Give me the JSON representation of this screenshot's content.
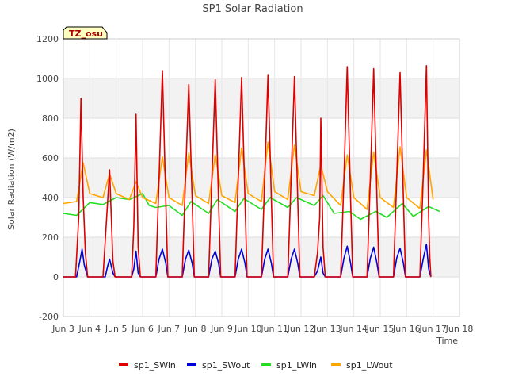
{
  "chart_data": {
    "type": "line",
    "title": "SP1 Solar Radiation",
    "xlabel": "Time",
    "ylabel": "Solar Radiation (W/m2)",
    "station_label": "TZ_osu",
    "x_domain": [
      "Jun 3",
      "Jun 18"
    ],
    "ylim": [
      -200,
      1200
    ],
    "x_ticks": [
      "Jun 3",
      "Jun 4",
      "Jun 5",
      "Jun 6",
      "Jun 7",
      "Jun 8",
      "Jun 9",
      "Jun 10",
      "Jun 11",
      "Jun 12",
      "Jun 13",
      "Jun 14",
      "Jun 15",
      "Jun 16",
      "Jun 17",
      "Jun 18"
    ],
    "y_ticks": [
      -200,
      0,
      200,
      400,
      600,
      800,
      1000,
      1200
    ],
    "grid": true,
    "legend_position": "bottom",
    "series": [
      {
        "name": "sp1_SWin",
        "color": "#dd0000",
        "values": [
          [
            "Jun 3 00:00",
            0
          ],
          [
            "Jun 3 11:00",
            0
          ],
          [
            "Jun 3 14:00",
            300
          ],
          [
            "Jun 3 16:00",
            900
          ],
          [
            "Jun 3 18:00",
            400
          ],
          [
            "Jun 3 20:00",
            120
          ],
          [
            "Jun 3 22:00",
            0
          ],
          [
            "Jun 4 12:00",
            0
          ],
          [
            "Jun 4 14:00",
            180
          ],
          [
            "Jun 4 18:00",
            540
          ],
          [
            "Jun 4 21:00",
            80
          ],
          [
            "Jun 4 23:00",
            0
          ],
          [
            "Jun 5 14:00",
            0
          ],
          [
            "Jun 5 16:00",
            250
          ],
          [
            "Jun 5 18:00",
            820
          ],
          [
            "Jun 5 20:00",
            150
          ],
          [
            "Jun 5 22:00",
            0
          ],
          [
            "Jun 6 12:00",
            0
          ],
          [
            "Jun 6 15:00",
            500
          ],
          [
            "Jun 6 18:00",
            1040
          ],
          [
            "Jun 6 21:00",
            400
          ],
          [
            "Jun 6 23:00",
            0
          ],
          [
            "Jun 7 12:00",
            0
          ],
          [
            "Jun 7 15:00",
            500
          ],
          [
            "Jun 7 18:00",
            970
          ],
          [
            "Jun 7 21:00",
            400
          ],
          [
            "Jun 7 23:00",
            0
          ],
          [
            "Jun 8 12:00",
            0
          ],
          [
            "Jun 8 15:00",
            500
          ],
          [
            "Jun 8 18:00",
            995
          ],
          [
            "Jun 8 21:00",
            400
          ],
          [
            "Jun 8 23:00",
            0
          ],
          [
            "Jun 9 12:00",
            0
          ],
          [
            "Jun 9 15:00",
            500
          ],
          [
            "Jun 9 18:00",
            1005
          ],
          [
            "Jun 9 21:00",
            400
          ],
          [
            "Jun 9 23:00",
            0
          ],
          [
            "Jun 10 12:00",
            0
          ],
          [
            "Jun 10 15:00",
            500
          ],
          [
            "Jun 10 18:00",
            1020
          ],
          [
            "Jun 10 21:00",
            400
          ],
          [
            "Jun 10 23:00",
            0
          ],
          [
            "Jun 11 12:00",
            0
          ],
          [
            "Jun 11 15:00",
            500
          ],
          [
            "Jun 11 18:00",
            1010
          ],
          [
            "Jun 11 21:00",
            400
          ],
          [
            "Jun 11 23:00",
            0
          ],
          [
            "Jun 12 12:00",
            0
          ],
          [
            "Jun 12 15:00",
            120
          ],
          [
            "Jun 12 17:00",
            300
          ],
          [
            "Jun 12 18:00",
            800
          ],
          [
            "Jun 12 20:00",
            150
          ],
          [
            "Jun 12 22:00",
            0
          ],
          [
            "Jun 13 12:00",
            0
          ],
          [
            "Jun 13 15:00",
            500
          ],
          [
            "Jun 13 18:00",
            1060
          ],
          [
            "Jun 13 21:00",
            400
          ],
          [
            "Jun 13 23:00",
            0
          ],
          [
            "Jun 14 12:00",
            0
          ],
          [
            "Jun 14 15:00",
            500
          ],
          [
            "Jun 14 18:00",
            1050
          ],
          [
            "Jun 14 21:00",
            400
          ],
          [
            "Jun 14 23:00",
            0
          ],
          [
            "Jun 15 12:00",
            0
          ],
          [
            "Jun 15 15:00",
            500
          ],
          [
            "Jun 15 18:00",
            1030
          ],
          [
            "Jun 15 21:00",
            400
          ],
          [
            "Jun 15 23:00",
            0
          ],
          [
            "Jun 16 12:00",
            0
          ],
          [
            "Jun 16 15:00",
            500
          ],
          [
            "Jun 16 18:00",
            1065
          ],
          [
            "Jun 16 20:00",
            300
          ],
          [
            "Jun 16 21:00",
            100
          ],
          [
            "Jun 16 22:00",
            0
          ]
        ]
      },
      {
        "name": "sp1_SWout",
        "color": "#0000dd",
        "values": [
          [
            "Jun 3 00:00",
            0
          ],
          [
            "Jun 3 12:00",
            0
          ],
          [
            "Jun 3 15:00",
            80
          ],
          [
            "Jun 3 17:00",
            140
          ],
          [
            "Jun 3 19:00",
            60
          ],
          [
            "Jun 3 22:00",
            0
          ],
          [
            "Jun 4 14:00",
            0
          ],
          [
            "Jun 4 16:00",
            50
          ],
          [
            "Jun 4 18:00",
            90
          ],
          [
            "Jun 4 21:00",
            20
          ],
          [
            "Jun 4 23:00",
            0
          ],
          [
            "Jun 5 14:00",
            0
          ],
          [
            "Jun 5 16:00",
            40
          ],
          [
            "Jun 5 18:00",
            130
          ],
          [
            "Jun 5 20:00",
            20
          ],
          [
            "Jun 5 22:00",
            0
          ],
          [
            "Jun 6 12:00",
            0
          ],
          [
            "Jun 6 15:00",
            90
          ],
          [
            "Jun 6 18:00",
            140
          ],
          [
            "Jun 6 21:00",
            70
          ],
          [
            "Jun 6 23:00",
            0
          ],
          [
            "Jun 7 12:00",
            0
          ],
          [
            "Jun 7 15:00",
            90
          ],
          [
            "Jun 7 18:00",
            135
          ],
          [
            "Jun 7 21:00",
            70
          ],
          [
            "Jun 7 23:00",
            0
          ],
          [
            "Jun 8 12:00",
            0
          ],
          [
            "Jun 8 15:00",
            90
          ],
          [
            "Jun 8 18:00",
            130
          ],
          [
            "Jun 8 21:00",
            70
          ],
          [
            "Jun 8 23:00",
            0
          ],
          [
            "Jun 9 12:00",
            0
          ],
          [
            "Jun 9 15:00",
            90
          ],
          [
            "Jun 9 18:00",
            140
          ],
          [
            "Jun 9 21:00",
            70
          ],
          [
            "Jun 9 23:00",
            0
          ],
          [
            "Jun 10 12:00",
            0
          ],
          [
            "Jun 10 15:00",
            90
          ],
          [
            "Jun 10 18:00",
            140
          ],
          [
            "Jun 10 21:00",
            70
          ],
          [
            "Jun 10 23:00",
            0
          ],
          [
            "Jun 11 12:00",
            0
          ],
          [
            "Jun 11 15:00",
            90
          ],
          [
            "Jun 11 18:00",
            140
          ],
          [
            "Jun 11 21:00",
            70
          ],
          [
            "Jun 11 23:00",
            0
          ],
          [
            "Jun 12 12:00",
            0
          ],
          [
            "Jun 12 15:00",
            30
          ],
          [
            "Jun 12 18:00",
            100
          ],
          [
            "Jun 12 20:00",
            20
          ],
          [
            "Jun 12 22:00",
            0
          ],
          [
            "Jun 13 12:00",
            0
          ],
          [
            "Jun 13 15:00",
            95
          ],
          [
            "Jun 13 18:00",
            155
          ],
          [
            "Jun 13 21:00",
            70
          ],
          [
            "Jun 13 23:00",
            0
          ],
          [
            "Jun 14 12:00",
            0
          ],
          [
            "Jun 14 15:00",
            95
          ],
          [
            "Jun 14 18:00",
            150
          ],
          [
            "Jun 14 21:00",
            70
          ],
          [
            "Jun 14 23:00",
            0
          ],
          [
            "Jun 15 12:00",
            0
          ],
          [
            "Jun 15 15:00",
            95
          ],
          [
            "Jun 15 18:00",
            145
          ],
          [
            "Jun 15 21:00",
            70
          ],
          [
            "Jun 15 23:00",
            0
          ],
          [
            "Jun 16 12:00",
            0
          ],
          [
            "Jun 16 15:00",
            90
          ],
          [
            "Jun 16 18:00",
            165
          ],
          [
            "Jun 16 20:00",
            40
          ],
          [
            "Jun 16 22:00",
            0
          ]
        ]
      },
      {
        "name": "sp1_LWin",
        "color": "#22dd22",
        "values": [
          [
            "Jun 3 00:00",
            320
          ],
          [
            "Jun 3 12:00",
            310
          ],
          [
            "Jun 4 00:00",
            375
          ],
          [
            "Jun 4 12:00",
            365
          ],
          [
            "Jun 5 00:00",
            400
          ],
          [
            "Jun 5 12:00",
            390
          ],
          [
            "Jun 6 00:00",
            420
          ],
          [
            "Jun 6 06:00",
            360
          ],
          [
            "Jun 6 12:00",
            350
          ],
          [
            "Jun 7 00:00",
            360
          ],
          [
            "Jun 7 12:00",
            310
          ],
          [
            "Jun 7 20:00",
            380
          ],
          [
            "Jun 8 12:00",
            320
          ],
          [
            "Jun 8 20:00",
            390
          ],
          [
            "Jun 9 12:00",
            330
          ],
          [
            "Jun 9 20:00",
            395
          ],
          [
            "Jun 10 12:00",
            340
          ],
          [
            "Jun 10 20:00",
            400
          ],
          [
            "Jun 11 12:00",
            350
          ],
          [
            "Jun 11 20:00",
            400
          ],
          [
            "Jun 12 12:00",
            360
          ],
          [
            "Jun 12 20:00",
            410
          ],
          [
            "Jun 13 06:00",
            320
          ],
          [
            "Jun 13 20:00",
            330
          ],
          [
            "Jun 14 06:00",
            290
          ],
          [
            "Jun 14 20:00",
            330
          ],
          [
            "Jun 15 06:00",
            300
          ],
          [
            "Jun 15 20:00",
            370
          ],
          [
            "Jun 16 06:00",
            305
          ],
          [
            "Jun 16 20:00",
            355
          ],
          [
            "Jun 17 06:00",
            330
          ]
        ]
      },
      {
        "name": "sp1_LWout",
        "color": "#ffa500",
        "values": [
          [
            "Jun 3 00:00",
            370
          ],
          [
            "Jun 3 12:00",
            380
          ],
          [
            "Jun 3 18:00",
            575
          ],
          [
            "Jun 4 00:00",
            420
          ],
          [
            "Jun 4 12:00",
            400
          ],
          [
            "Jun 4 18:00",
            520
          ],
          [
            "Jun 5 00:00",
            420
          ],
          [
            "Jun 5 12:00",
            390
          ],
          [
            "Jun 5 18:00",
            480
          ],
          [
            "Jun 6 00:00",
            400
          ],
          [
            "Jun 6 12:00",
            370
          ],
          [
            "Jun 6 18:00",
            605
          ],
          [
            "Jun 7 00:00",
            400
          ],
          [
            "Jun 7 12:00",
            360
          ],
          [
            "Jun 7 18:00",
            625
          ],
          [
            "Jun 8 00:00",
            410
          ],
          [
            "Jun 8 12:00",
            370
          ],
          [
            "Jun 8 18:00",
            615
          ],
          [
            "Jun 9 00:00",
            410
          ],
          [
            "Jun 9 12:00",
            375
          ],
          [
            "Jun 9 18:00",
            650
          ],
          [
            "Jun 10 00:00",
            420
          ],
          [
            "Jun 10 12:00",
            380
          ],
          [
            "Jun 10 18:00",
            680
          ],
          [
            "Jun 11 00:00",
            430
          ],
          [
            "Jun 11 12:00",
            390
          ],
          [
            "Jun 11 18:00",
            665
          ],
          [
            "Jun 12 00:00",
            430
          ],
          [
            "Jun 12 12:00",
            410
          ],
          [
            "Jun 12 18:00",
            565
          ],
          [
            "Jun 13 00:00",
            430
          ],
          [
            "Jun 13 12:00",
            360
          ],
          [
            "Jun 13 18:00",
            615
          ],
          [
            "Jun 14 00:00",
            400
          ],
          [
            "Jun 14 12:00",
            340
          ],
          [
            "Jun 14 18:00",
            630
          ],
          [
            "Jun 15 00:00",
            400
          ],
          [
            "Jun 15 12:00",
            350
          ],
          [
            "Jun 15 18:00",
            655
          ],
          [
            "Jun 16 00:00",
            400
          ],
          [
            "Jun 16 12:00",
            345
          ],
          [
            "Jun 16 18:00",
            640
          ],
          [
            "Jun 17 00:00",
            390
          ]
        ]
      }
    ]
  }
}
